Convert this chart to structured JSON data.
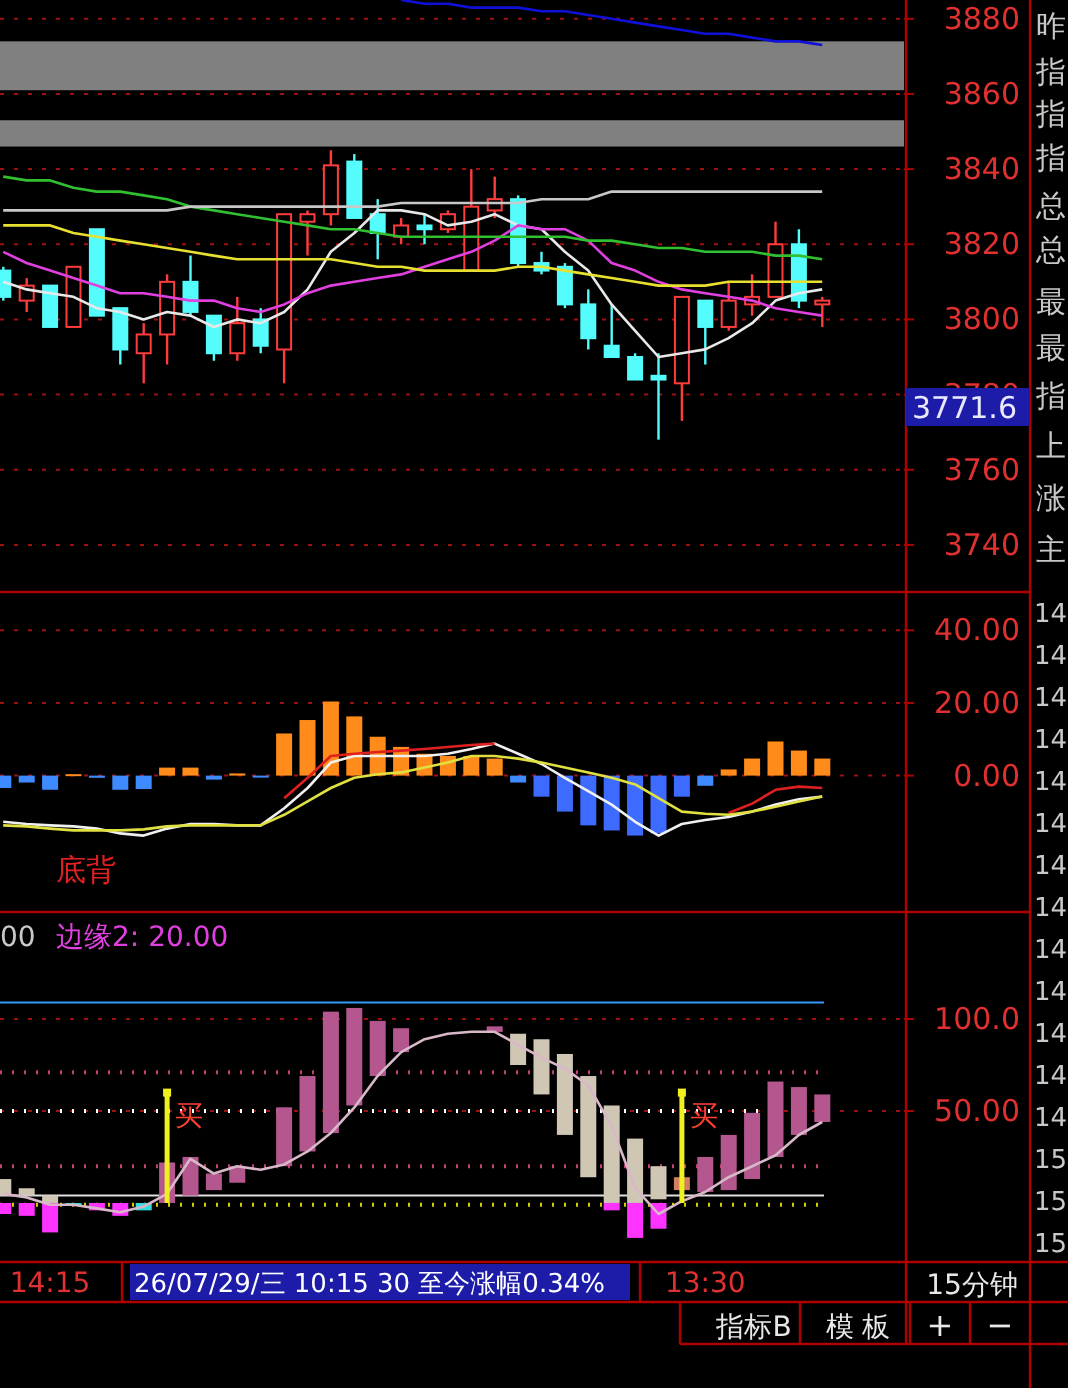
{
  "chart_data": [
    {
      "type": "candlestick",
      "categories": [
        null,
        null,
        null,
        null,
        null,
        null,
        null,
        null,
        null,
        null,
        null,
        null,
        null,
        null,
        null,
        null,
        null,
        null,
        null,
        null,
        null,
        null,
        null,
        null,
        null,
        null,
        null,
        null,
        null,
        null,
        null,
        null,
        null,
        null,
        null,
        null
      ],
      "ohlc": [
        [
          3813,
          3814,
          3805,
          3806
        ],
        [
          3805,
          3811,
          3802,
          3809
        ],
        [
          3809,
          3809,
          3798,
          3798
        ],
        [
          3798,
          3814,
          3798,
          3814
        ],
        [
          3824,
          3824,
          3801,
          3801
        ],
        [
          3803,
          3803,
          3788,
          3792
        ],
        [
          3791,
          3799,
          3783,
          3796
        ],
        [
          3796,
          3812,
          3788,
          3810
        ],
        [
          3810,
          3817,
          3801,
          3802
        ],
        [
          3801,
          3801,
          3789,
          3791
        ],
        [
          3791,
          3806,
          3789,
          3799
        ],
        [
          3800,
          3803,
          3791,
          3793
        ],
        [
          3792,
          3828,
          3783,
          3828
        ],
        [
          3826,
          3829,
          3817,
          3828
        ],
        [
          3828,
          3845,
          3825,
          3841
        ],
        [
          3842,
          3844,
          3827,
          3827
        ],
        [
          3828,
          3832,
          3816,
          3823
        ],
        [
          3822,
          3827,
          3820,
          3825
        ],
        [
          3825,
          3828,
          3820,
          3824
        ],
        [
          3824,
          3829,
          3823,
          3828
        ],
        [
          3813,
          3840,
          3813,
          3830
        ],
        [
          3829,
          3838,
          3827,
          3832
        ],
        [
          3832,
          3833,
          3814,
          3815
        ],
        [
          3815,
          3818,
          3812,
          3813
        ],
        [
          3814,
          3815,
          3803,
          3804
        ],
        [
          3804,
          3808,
          3792,
          3795
        ],
        [
          3793,
          3804,
          3790,
          3790
        ],
        [
          3790,
          3791,
          3784,
          3784
        ],
        [
          3785,
          3791,
          3768,
          3784
        ],
        [
          3783,
          3806,
          3773,
          3806
        ],
        [
          3805,
          3805,
          3788,
          3798
        ],
        [
          3798,
          3810,
          3797,
          3805
        ],
        [
          3804,
          3812,
          3801,
          3806
        ],
        [
          3806,
          3826,
          3806,
          3820
        ],
        [
          3820,
          3824,
          3803,
          3805
        ],
        [
          3804,
          3806,
          3798,
          3805
        ]
      ],
      "series": [
        {
          "type": "line",
          "color": "#e8e8e8",
          "values": [
            3810,
            3808,
            3807,
            3806,
            3803,
            3802,
            3800,
            3802,
            3801,
            3798,
            3800,
            3799,
            3802,
            3808,
            3818,
            3823,
            3829,
            3829,
            3828,
            3825,
            3826,
            3828,
            3825,
            3824,
            3818,
            3813,
            3804,
            3797,
            3790,
            3791,
            3792,
            3795,
            3799,
            3805,
            3807,
            3808
          ]
        },
        {
          "type": "line",
          "color": "#e040e0",
          "values": [
            3818,
            3815,
            3813,
            3811,
            3809,
            3807,
            3807,
            3806,
            3805,
            3805,
            3803,
            3802,
            3804,
            3807,
            3809,
            3810,
            3811,
            3812,
            3814,
            3816,
            3818,
            3821,
            3825,
            3824,
            3824,
            3821,
            3815,
            3813,
            3810,
            3808,
            3807,
            3806,
            3805,
            3803,
            3802,
            3801
          ]
        },
        {
          "type": "line",
          "color": "#e8e030",
          "values": [
            3825,
            3825,
            3825,
            3823,
            3822,
            3821,
            3820,
            3819,
            3818,
            3817,
            3816,
            3816,
            3816,
            3816,
            3816,
            3815,
            3814,
            3814,
            3813,
            3813,
            3813,
            3813,
            3814,
            3814,
            3813,
            3812,
            3811,
            3810,
            3809,
            3809,
            3809,
            3810,
            3810,
            3810,
            3810,
            3810
          ]
        },
        {
          "type": "line",
          "color": "#30c030",
          "values": [
            3838,
            3837,
            3837,
            3835,
            3834,
            3834,
            3833,
            3832,
            3830,
            3829,
            3828,
            3827,
            3826,
            3825,
            3824,
            3824,
            3823,
            3822,
            3822,
            3822,
            3822,
            3822,
            3822,
            3822,
            3822,
            3821,
            3821,
            3820,
            3819,
            3819,
            3818,
            3818,
            3818,
            3817,
            3817,
            3816
          ]
        },
        {
          "type": "line",
          "color": "#c8c8c8",
          "values": [
            3829,
            3829,
            3829,
            3829,
            3829,
            3829,
            3829,
            3829,
            3830,
            3830,
            3830,
            3830,
            3830,
            3830,
            3830,
            3830,
            3830,
            3831,
            3831,
            3831,
            3831,
            3831,
            3831,
            3832,
            3832,
            3832,
            3834,
            3834,
            3834,
            3834,
            3834,
            3834,
            3834,
            3834,
            3834,
            3834
          ]
        },
        {
          "type": "line",
          "color": "#1010d8",
          "values": [
            null,
            null,
            null,
            null,
            null,
            null,
            null,
            null,
            null,
            null,
            null,
            null,
            null,
            null,
            null,
            null,
            null,
            3885,
            3884,
            3884,
            3883,
            3883,
            3883,
            3882,
            3882,
            3881,
            3880,
            3879,
            3878,
            3877,
            3876,
            3876,
            3875,
            3874,
            3874,
            3873
          ]
        }
      ],
      "bands": [
        {
          "axis": "y",
          "from": 3861,
          "to": 3874,
          "color": "#808080"
        },
        {
          "axis": "y",
          "from": 3846,
          "to": 3853,
          "color": "#808080"
        }
      ],
      "ylim": [
        3728,
        3885
      ],
      "yticks": [
        3740,
        3760,
        3780,
        3800,
        3820,
        3840,
        3860,
        3880
      ],
      "grid": "y",
      "annotations": [
        "3771.6"
      ]
    },
    {
      "type": "bar",
      "categories": [
        null,
        null,
        null,
        null,
        null,
        null,
        null,
        null,
        null,
        null,
        null,
        null,
        null,
        null,
        null,
        null,
        null,
        null,
        null,
        null,
        null,
        null,
        null,
        null,
        null,
        null,
        null,
        null,
        null,
        null,
        null,
        null,
        null,
        null,
        null,
        null
      ],
      "values": [
        -3.4,
        -1.9,
        -3.9,
        0.4,
        -0.6,
        -3.9,
        -3.7,
        2.2,
        2.2,
        -1.1,
        0.6,
        -0.4,
        11.6,
        15.3,
        20.4,
        16.3,
        10.7,
        7.9,
        6,
        5.4,
        5.4,
        4.7,
        -1.9,
        -5.8,
        -9.9,
        -13.7,
        -15.1,
        -16.5,
        -15.9,
        -5.8,
        -2.8,
        1.7,
        4.7,
        9.4,
        6.9,
        4.7
      ],
      "colors": [
        "#3d8bff",
        "#3d8bff",
        "#3d8bff",
        "#ff8c1a",
        "#3d8bff",
        "#3d8bff",
        "#3d8bff",
        "#ff8c1a",
        "#ff8c1a",
        "#3d8bff",
        "#ff8c1a",
        "#3d8bff",
        "#ff8c1a",
        "#ff8c1a",
        "#ff8c1a",
        "#ff8c1a",
        "#ff8c1a",
        "#ff8c1a",
        "#ff8c1a",
        "#ff8c1a",
        "#ff8c1a",
        "#ff8c1a",
        "#3d8bff",
        "#3d6bff",
        "#3d6bff",
        "#3d6bff",
        "#3d6bff",
        "#3d6bff",
        "#3d6bff",
        "#3d6bff",
        "#3d8bff",
        "#ff8c1a",
        "#ff8c1a",
        "#ff8c1a",
        "#ff8c1a",
        "#ff8c1a"
      ],
      "series": [
        {
          "type": "line",
          "color": "#f0f0f0",
          "values": [
            -12.7,
            -13.3,
            -13.7,
            -14,
            -14.6,
            -15.9,
            -16.5,
            -14.6,
            -13.3,
            -13.3,
            -13.7,
            -13.7,
            -9,
            -3.4,
            3.6,
            5.4,
            5.4,
            5.4,
            5.4,
            6,
            7.3,
            8.8,
            6,
            3.2,
            -0.6,
            -4.3,
            -8,
            -12.7,
            -16.5,
            -13.3,
            -12.2,
            -11.4,
            -9.9,
            -8,
            -6.5,
            -5.8
          ]
        },
        {
          "type": "line",
          "color": "#e02020",
          "values": [
            null,
            null,
            null,
            null,
            null,
            null,
            null,
            null,
            null,
            null,
            null,
            null,
            -6.2,
            -0.6,
            5.4,
            6,
            6.5,
            6.9,
            7.3,
            7.9,
            8.4,
            8.8,
            null,
            null,
            null,
            null,
            null,
            null,
            null,
            null,
            null,
            -10.3,
            -7.7,
            -3.9,
            -3,
            -3.4
          ]
        },
        {
          "type": "line",
          "color": "#e0e040",
          "values": [
            -13.7,
            -14,
            -14.6,
            -15.1,
            -15.1,
            -15.1,
            -14.8,
            -14,
            -13.7,
            -13.7,
            -13.7,
            -13.7,
            -10.8,
            -7.1,
            -3.4,
            -0.6,
            0.4,
            0.9,
            2.2,
            3.6,
            5.4,
            5.4,
            4.7,
            3.6,
            2.2,
            0.9,
            -0.6,
            -2.4,
            -6.2,
            -9.9,
            -10.5,
            -10.8,
            -9.9,
            -8.6,
            -7.1,
            -5.8
          ]
        }
      ],
      "ylim": [
        -37,
        50
      ],
      "yticks": [
        {
          "value": 40,
          "label": "40.00"
        },
        {
          "value": 20,
          "label": "20.00"
        },
        {
          "value": 0,
          "label": "0.00"
        }
      ],
      "grid": "y",
      "annotations": [
        "底背"
      ]
    },
    {
      "type": "bar",
      "categories": [
        null,
        null,
        "14:15",
        null,
        null,
        null,
        null,
        null,
        null,
        null,
        null,
        null,
        null,
        null,
        null,
        null,
        null,
        null,
        null,
        null,
        null,
        null,
        null,
        null,
        null,
        null,
        null,
        null,
        null,
        null,
        "13:30",
        null,
        null,
        null,
        null,
        null
      ],
      "series": [
        {
          "type": "bar",
          "base": [
            4,
            4,
            0,
            null,
            null,
            null,
            null,
            0,
            4,
            7,
            11,
            null,
            20,
            28,
            38,
            53,
            69,
            82,
            null,
            null,
            null,
            93,
            75,
            59,
            37,
            14,
            0,
            0,
            2,
            7,
            6,
            7,
            13,
            25,
            37,
            44
          ],
          "values": [
            9,
            4,
            4,
            null,
            null,
            null,
            null,
            22,
            21,
            9,
            9,
            null,
            32,
            41,
            66,
            53,
            30,
            13,
            null,
            null,
            null,
            3,
            17,
            30,
            44,
            55,
            53,
            35,
            18,
            7,
            19,
            30,
            36,
            41,
            26,
            15
          ],
          "colors": [
            "#cfc6b4",
            "#cfc6b4",
            "#cfc6b4",
            null,
            null,
            null,
            null,
            "#b4578f",
            "#b4578f",
            "#b4578f",
            "#b4578f",
            null,
            "#b4578f",
            "#b4578f",
            "#b4578f",
            "#b4578f",
            "#b4578f",
            "#b4578f",
            null,
            null,
            null,
            "#b4578f",
            "#cfc6b4",
            "#cfc6b4",
            "#cfc6b4",
            "#cfc6b4",
            "#cfc6b4",
            "#cfc6b4",
            "#cfc6b4",
            "#d08060",
            "#b4578f",
            "#b4578f",
            "#b4578f",
            "#b4578f",
            "#b4578f",
            "#b4578f"
          ]
        },
        {
          "type": "bar",
          "values": [
            -6,
            -7,
            -16,
            -1,
            -4,
            -7,
            -4,
            null,
            null,
            null,
            null,
            null,
            null,
            null,
            null,
            null,
            null,
            null,
            null,
            null,
            null,
            null,
            null,
            null,
            null,
            null,
            -4,
            -19,
            -14,
            null,
            null,
            null,
            null,
            null,
            null,
            null
          ],
          "colors": [
            "#ff33ff",
            "#ff33ff",
            "#ff33ff",
            "#33dddd",
            "#ff33ff",
            "#ff33ff",
            "#33dddd",
            null,
            null,
            null,
            null,
            null,
            null,
            null,
            null,
            null,
            null,
            null,
            null,
            null,
            null,
            null,
            null,
            null,
            null,
            null,
            "#ff33ff",
            "#ff33ff",
            "#ff33ff",
            null,
            null,
            null,
            null,
            null,
            null,
            null
          ]
        },
        {
          "type": "line",
          "color": "#d8b8c8",
          "values": [
            5,
            3,
            -1,
            -1,
            -3,
            -5,
            -2,
            5,
            24,
            16,
            20,
            18,
            21,
            28,
            38,
            52,
            69,
            82,
            89,
            92,
            93,
            93,
            86,
            79,
            73,
            64,
            42,
            8,
            -6,
            1,
            6,
            14,
            20,
            26,
            37,
            44
          ]
        },
        {
          "type": "lollipop",
          "color": "#f0f020",
          "marker": "square",
          "values": [
            null,
            null,
            null,
            null,
            null,
            null,
            null,
            60,
            null,
            null,
            null,
            null,
            null,
            null,
            null,
            null,
            null,
            null,
            null,
            null,
            null,
            null,
            null,
            null,
            null,
            null,
            null,
            null,
            null,
            60,
            null,
            null,
            null,
            null,
            null,
            null
          ],
          "value_labels": [
            null,
            null,
            null,
            null,
            null,
            null,
            null,
            "买",
            null,
            null,
            null,
            null,
            null,
            null,
            null,
            null,
            null,
            null,
            null,
            null,
            null,
            null,
            null,
            null,
            null,
            null,
            null,
            null,
            null,
            "买",
            null,
            null,
            null,
            null,
            null,
            null
          ]
        }
      ],
      "ref_lines": [
        {
          "axis": "y",
          "value": 109,
          "color": "#3399ff",
          "line_style": "solid"
        },
        {
          "axis": "y",
          "value": 71,
          "color": "#c04070",
          "line_style": "dotted"
        },
        {
          "axis": "y",
          "value": 50,
          "color": "#ffffff",
          "line_style": "dotted"
        },
        {
          "axis": "y",
          "value": 20,
          "color": "#c04070",
          "line_style": "dotted"
        },
        {
          "axis": "y",
          "value": 4,
          "color": "#e0e0e0",
          "line_style": "solid"
        },
        {
          "axis": "y",
          "value": -1,
          "color": "#d0d000",
          "line_style": "dotted"
        }
      ],
      "ylim": [
        -31,
        156
      ],
      "yticks": [
        {
          "value": 100,
          "label": "100.0"
        },
        {
          "value": 50,
          "label": "50.00"
        }
      ],
      "grid": "y",
      "annotations": [
        "00",
        "边缘2: 20.00",
        "26/07/29/三 10:15 30 至今涨幅0.34%"
      ]
    },
    {
      "type": "other",
      "annotations": [
        "昨",
        "指",
        "指",
        "指",
        "总",
        "总",
        "最",
        "最",
        "指",
        "上",
        "涨",
        "主",
        "14",
        "14",
        "14",
        "14",
        "14",
        "14",
        "14",
        "14",
        "14",
        "14",
        "14",
        "14",
        "14",
        "15",
        "15",
        "15",
        "15分钟",
        "指标B",
        "模 板",
        "+",
        "−"
      ]
    }
  ]
}
